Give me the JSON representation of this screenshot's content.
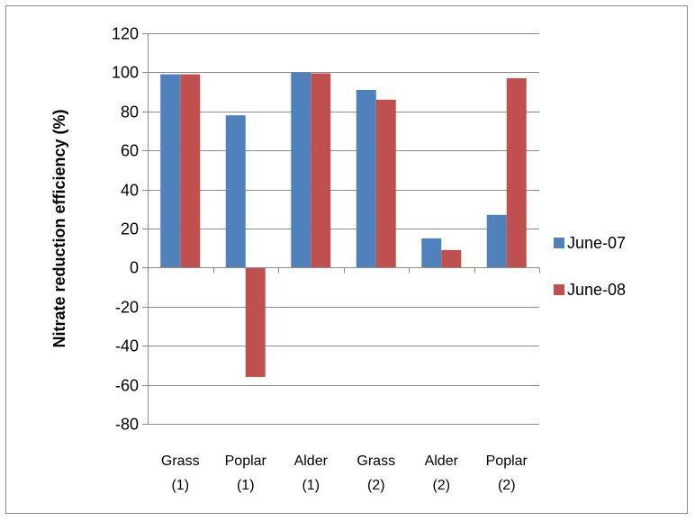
{
  "chart_data": {
    "type": "bar",
    "categories": [
      [
        "Grass",
        "(1)"
      ],
      [
        "Poplar",
        "(1)"
      ],
      [
        "Alder",
        "(1)"
      ],
      [
        "Grass",
        "(2)"
      ],
      [
        "Alder",
        "(2)"
      ],
      [
        "Poplar",
        "(2)"
      ]
    ],
    "series": [
      {
        "name": "June-07",
        "color": "#4F81BD",
        "values": [
          99,
          78,
          100,
          91,
          15,
          27
        ]
      },
      {
        "name": "June-08",
        "color": "#C0504D",
        "values": [
          99,
          -56,
          99.5,
          86,
          9,
          97
        ]
      }
    ],
    "title": "",
    "xlabel": "",
    "ylabel": "Nitrate reduction efficiency (%)",
    "ylim": [
      -80,
      120
    ],
    "yticks": [
      -80,
      -60,
      -40,
      -20,
      0,
      20,
      40,
      60,
      80,
      100,
      120
    ],
    "grid": true,
    "legend_position": "right"
  }
}
